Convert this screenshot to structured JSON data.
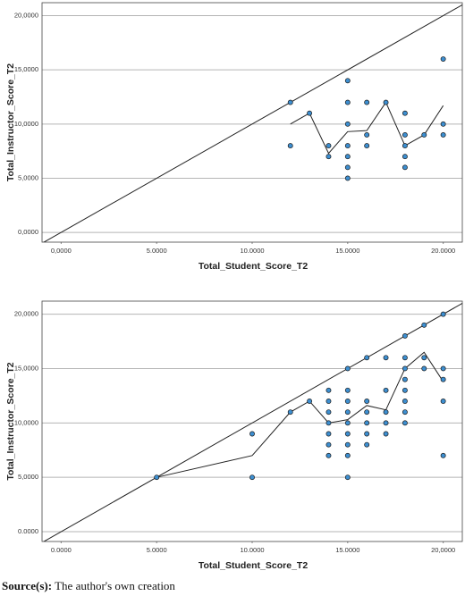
{
  "chart_data": [
    {
      "type": "scatter",
      "x_label": "Total_Student_Score_T2",
      "y_label": "Total_Instructor_Score_T2",
      "xlim": [
        -1,
        21
      ],
      "ylim": [
        -0.9,
        21.2
      ],
      "xticks": [
        {
          "value": 0,
          "label": "0,0000"
        },
        {
          "value": 5,
          "label": "5.0000"
        },
        {
          "value": 10,
          "label": "10.0000"
        },
        {
          "value": 15,
          "label": "15.0000"
        },
        {
          "value": 20,
          "label": "20.0000"
        }
      ],
      "yticks": [
        {
          "value": 0,
          "label": "0,0000"
        },
        {
          "value": 5,
          "label": "5,0000"
        },
        {
          "value": 10,
          "label": "10,0000"
        },
        {
          "value": 15,
          "label": "15,0000"
        },
        {
          "value": 20,
          "label": "20,0000"
        }
      ],
      "grid": true,
      "identity_line": true,
      "point_color": "#3d8fd1",
      "line_color": "#222222",
      "points": {
        "x": [
          12,
          12,
          13,
          14,
          14,
          15,
          15,
          15,
          15,
          15,
          15,
          15,
          16,
          16,
          16,
          17,
          18,
          18,
          18,
          18,
          18,
          19,
          20,
          20,
          20
        ],
        "y": [
          12,
          8,
          11,
          8,
          7,
          14,
          12,
          10,
          8,
          7,
          6,
          5,
          12,
          9,
          8,
          12,
          11,
          9,
          8,
          7,
          6,
          9,
          16,
          10,
          9
        ]
      },
      "fit_line": {
        "x": [
          12,
          13,
          14,
          15,
          16,
          17,
          18,
          19,
          20
        ],
        "y": [
          10,
          11,
          7.3,
          9.3,
          9.4,
          12,
          8,
          9,
          11.7
        ]
      }
    },
    {
      "type": "scatter",
      "x_label": "Total_Student_Score_T2",
      "y_label": "Total_Instructor_Score_T2",
      "xlim": [
        -1,
        21
      ],
      "ylim": [
        -0.9,
        21.2
      ],
      "xticks": [
        {
          "value": 0,
          "label": "0.0000"
        },
        {
          "value": 5,
          "label": "5.0000"
        },
        {
          "value": 10,
          "label": "10.0000"
        },
        {
          "value": 15,
          "label": "15.0000"
        },
        {
          "value": 20,
          "label": "20,0000"
        }
      ],
      "yticks": [
        {
          "value": 0,
          "label": "0.0000"
        },
        {
          "value": 5,
          "label": "5,0000"
        },
        {
          "value": 10,
          "label": "10,0000"
        },
        {
          "value": 15,
          "label": "15,0000"
        },
        {
          "value": 20,
          "label": "20,0000"
        }
      ],
      "grid": true,
      "identity_line": true,
      "point_color": "#3d8fd1",
      "line_color": "#222222",
      "points": {
        "x": [
          5,
          10,
          10,
          12,
          13,
          14,
          14,
          14,
          14,
          14,
          14,
          14,
          15,
          15,
          15,
          15,
          15,
          15,
          15,
          15,
          15,
          16,
          16,
          16,
          16,
          16,
          16,
          17,
          17,
          17,
          17,
          17,
          18,
          18,
          18,
          18,
          18,
          18,
          18,
          18,
          19,
          19,
          19,
          20,
          20,
          20,
          20,
          20
        ],
        "y": [
          5,
          9,
          5,
          11,
          12,
          13,
          12,
          11,
          10,
          9,
          8,
          7,
          15,
          13,
          12,
          11,
          10,
          9,
          8,
          7,
          5,
          16,
          12,
          11,
          10,
          9,
          8,
          16,
          13,
          11,
          10,
          9,
          18,
          16,
          15,
          14,
          13,
          12,
          11,
          10,
          19,
          16,
          15,
          20,
          15,
          14,
          12,
          7
        ]
      },
      "fit_line": {
        "x": [
          5,
          10,
          12,
          13,
          14,
          15,
          16,
          17,
          18,
          19,
          20
        ],
        "y": [
          5,
          7,
          11,
          12,
          10,
          10.3,
          11.6,
          11.2,
          15,
          16.5,
          13.8
        ]
      }
    }
  ],
  "caption": {
    "label": "Source(s):",
    "text": "The author's own creation"
  }
}
